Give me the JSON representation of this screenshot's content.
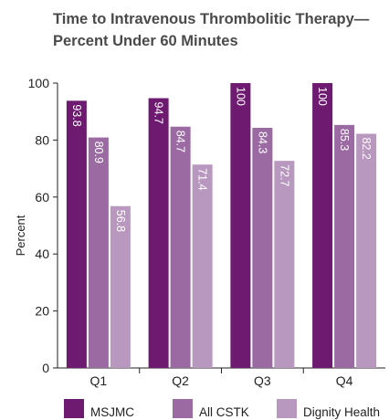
{
  "chart_data": {
    "type": "bar",
    "title_lines": [
      "Time to Intravenous Thrombolitic Therapy—",
      "Percent Under 60 Minutes"
    ],
    "ylabel": "Percent",
    "xlabel": "",
    "ylim": [
      0,
      100
    ],
    "yticks": [
      0,
      20,
      40,
      60,
      80,
      100
    ],
    "categories": [
      "Q1",
      "Q2",
      "Q3",
      "Q4"
    ],
    "series": [
      {
        "name": "MSJMC",
        "color": "#6d1a70",
        "values": [
          93.8,
          94.7,
          100,
          100
        ],
        "labels": [
          "93.8",
          "94.7",
          "100",
          "100"
        ]
      },
      {
        "name": "All CSTK",
        "color": "#9b6aa3",
        "values": [
          80.9,
          84.7,
          84.3,
          85.3
        ],
        "labels": [
          "80.9",
          "84.7",
          "84.3",
          "85.3"
        ]
      },
      {
        "name": "Dignity Health",
        "color": "#b998bf",
        "values": [
          56.8,
          71.4,
          72.7,
          82.2
        ],
        "labels": [
          "56.8",
          "71.4",
          "72.7",
          "82.2"
        ]
      }
    ],
    "grid": false,
    "legend_position": "bottom"
  }
}
